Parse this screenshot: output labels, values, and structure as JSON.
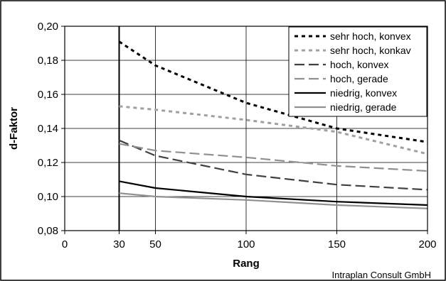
{
  "chart_data": {
    "type": "line",
    "xlabel": "Rang",
    "ylabel": "d-Faktor",
    "xlim": [
      0,
      200
    ],
    "ylim": [
      0.08,
      0.2
    ],
    "x_ticks": [
      "0",
      "30",
      "50",
      "100",
      "150",
      "200"
    ],
    "y_ticks": [
      "0,08",
      "0,10",
      "0,12",
      "0,14",
      "0,16",
      "0,18",
      "0,20"
    ],
    "grid": "horizontal and vertical major gridlines",
    "legend_position": "top-right",
    "series": [
      {
        "name": "sehr hoch, konvex",
        "color": "#000000",
        "dash": "dotted",
        "x": [
          30,
          50,
          100,
          150,
          200
        ],
        "y": [
          0.191,
          0.177,
          0.155,
          0.14,
          0.132
        ]
      },
      {
        "name": "sehr hoch, konkav",
        "color": "#a0a0a0",
        "dash": "dotted",
        "x": [
          30,
          50,
          100,
          150,
          200
        ],
        "y": [
          0.153,
          0.151,
          0.145,
          0.138,
          0.125
        ]
      },
      {
        "name": "hoch, konvex",
        "color": "#404040",
        "dash": "long-dash",
        "x": [
          30,
          50,
          100,
          150,
          200
        ],
        "y": [
          0.133,
          0.124,
          0.113,
          0.107,
          0.104
        ]
      },
      {
        "name": "hoch, gerade",
        "color": "#909090",
        "dash": "long-dash",
        "x": [
          30,
          50,
          100,
          150,
          200
        ],
        "y": [
          0.131,
          0.127,
          0.123,
          0.118,
          0.115
        ]
      },
      {
        "name": "niedrig, konvex",
        "color": "#000000",
        "dash": "solid",
        "x": [
          30,
          50,
          100,
          150,
          200
        ],
        "y": [
          0.109,
          0.105,
          0.1,
          0.097,
          0.095
        ]
      },
      {
        "name": "niedrig, gerade",
        "color": "#909090",
        "dash": "solid",
        "x": [
          30,
          50,
          100,
          150,
          200
        ],
        "y": [
          0.102,
          0.1,
          0.098,
          0.095,
          0.093
        ]
      }
    ],
    "annotations": {
      "vertical_marker_x": 30
    }
  },
  "credit": "Intraplan Consult GmbH"
}
